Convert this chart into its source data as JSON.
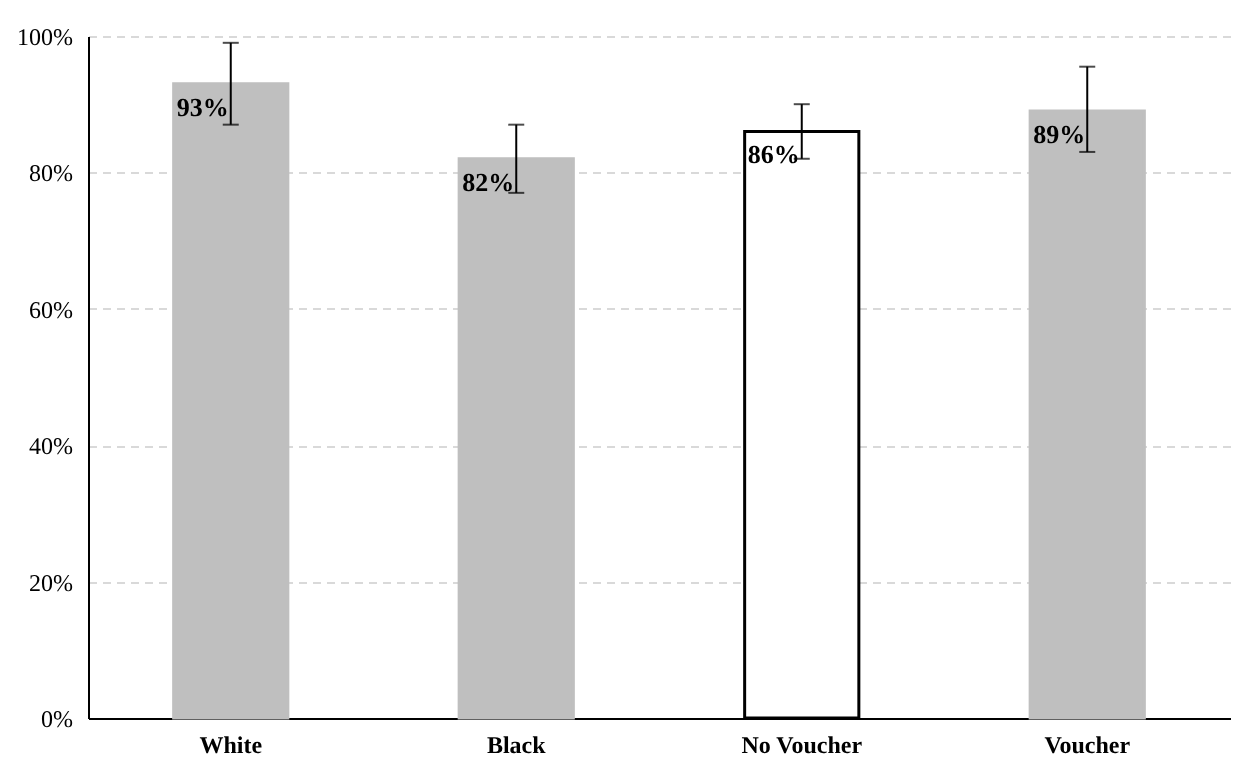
{
  "chart_data": {
    "type": "bar",
    "categories": [
      "White",
      "Black",
      "No Voucher",
      "Voucher"
    ],
    "values": [
      93,
      82,
      86,
      89
    ],
    "colors": [
      "#bfbfbf",
      "#bfbfbf",
      "#ffffff",
      "#bfbfbf"
    ],
    "errors": [
      [
        87,
        99
      ],
      [
        77,
        87
      ],
      [
        82,
        90
      ],
      [
        83,
        95.5
      ]
    ],
    "value_labels": [
      "93%",
      "82%",
      "86%",
      "89%"
    ],
    "ylim": [
      0,
      100
    ],
    "yticks": [
      {
        "value": 0,
        "label": "0%"
      },
      {
        "value": 20,
        "label": "20%"
      },
      {
        "value": 40,
        "label": "40%"
      },
      {
        "value": 60,
        "label": "60%"
      },
      {
        "value": 80,
        "label": "80%"
      },
      {
        "value": 100,
        "label": "100%"
      }
    ],
    "grid": "y"
  }
}
